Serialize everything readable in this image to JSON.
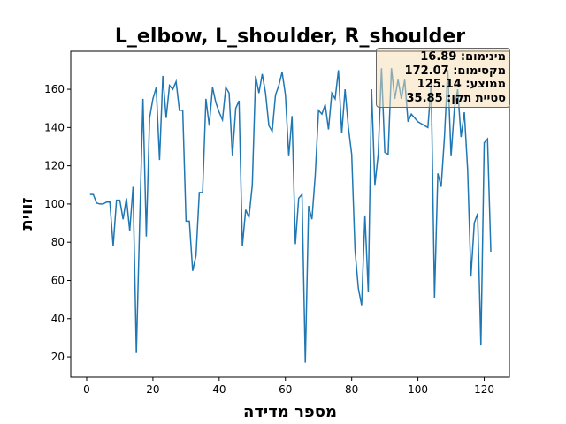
{
  "chart_data": {
    "type": "line",
    "title": "L_elbow, L_shoulder, R_shoulder",
    "x_label": "מספר מדידה",
    "y_label": "זווית",
    "x": [
      1,
      2,
      3,
      4,
      5,
      6,
      7,
      8,
      9,
      10,
      11,
      12,
      13,
      14,
      15,
      16,
      17,
      18,
      19,
      20,
      21,
      22,
      23,
      24,
      25,
      26,
      27,
      28,
      29,
      30,
      31,
      32,
      33,
      34,
      35,
      36,
      37,
      38,
      39,
      40,
      41,
      42,
      43,
      44,
      45,
      46,
      47,
      48,
      49,
      50,
      51,
      52,
      53,
      54,
      55,
      56,
      57,
      58,
      59,
      60,
      61,
      62,
      63,
      64,
      65,
      66,
      67,
      68,
      69,
      70,
      71,
      72,
      73,
      74,
      75,
      76,
      77,
      78,
      79,
      80,
      81,
      82,
      83,
      84,
      85,
      86,
      87,
      88,
      89,
      90,
      91,
      92,
      93,
      94,
      95,
      96,
      97,
      98,
      99,
      100,
      101,
      102,
      103,
      104,
      105,
      106,
      107,
      108,
      109,
      110,
      111,
      112,
      113,
      114,
      115,
      116,
      117,
      118,
      119,
      120,
      121,
      122
    ],
    "series": [
      {
        "color": "#1f77b4",
        "values": [
          105,
          105,
          100.5,
          100,
          100,
          101,
          101,
          78,
          102,
          102,
          92,
          103,
          86,
          109,
          22,
          90,
          155,
          83,
          145,
          155,
          161,
          123,
          167,
          145,
          162,
          160,
          164,
          149,
          149,
          91,
          91,
          65,
          73,
          106,
          106,
          155,
          141,
          161,
          153,
          148,
          144,
          161,
          158,
          125,
          150,
          154,
          78,
          97,
          93,
          110,
          167,
          158,
          168,
          158,
          141,
          138,
          157,
          162,
          169,
          157,
          125,
          146,
          79,
          103,
          105,
          17,
          99,
          92,
          115,
          149,
          147,
          152,
          139,
          158,
          155,
          170,
          137,
          160,
          140,
          126,
          76,
          56,
          47,
          94,
          54,
          160,
          110,
          126,
          171,
          127,
          126,
          171,
          155,
          165,
          155,
          165,
          143,
          147,
          145,
          143,
          142,
          141,
          140,
          163,
          51,
          116,
          109,
          135,
          170,
          125,
          150,
          160,
          135,
          148,
          118,
          62,
          90,
          95,
          26,
          132,
          134,
          75
        ]
      }
    ],
    "xlim": [
      -4.8,
      127.6
    ],
    "ylim": [
      9.4,
      179.9
    ],
    "xticks": [
      0,
      20,
      40,
      60,
      80,
      100,
      120
    ],
    "yticks": [
      20,
      40,
      60,
      80,
      100,
      120,
      140,
      160
    ],
    "annotation": [
      "מינימום: 16.89",
      "מקסימום: 172.07",
      "ממוצע: 125.14",
      "סטיית תקן: 35.85"
    ]
  }
}
